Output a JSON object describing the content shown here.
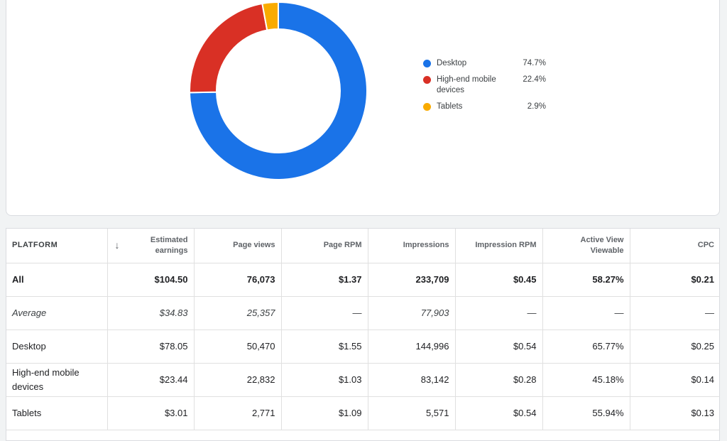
{
  "chart_data": {
    "type": "pie",
    "categories": [
      "Desktop",
      "High-end mobile devices",
      "Tablets"
    ],
    "values": [
      74.7,
      22.4,
      2.9
    ],
    "colors": [
      "#1a73e8",
      "#d93025",
      "#f9ab00"
    ],
    "legend_position": "right",
    "style": "donut"
  },
  "legend": [
    {
      "label": "Desktop",
      "value": "74.7%",
      "color": "#1a73e8"
    },
    {
      "label": "High-end mobile devices",
      "value": "22.4%",
      "color": "#d93025"
    },
    {
      "label": "Tablets",
      "value": "2.9%",
      "color": "#f9ab00"
    }
  ],
  "table": {
    "sort_icon": "arrow-down-icon",
    "columns": [
      "PLATFORM",
      "Estimated earnings",
      "Page views",
      "Page RPM",
      "Impressions",
      "Impression RPM",
      "Active View Viewable",
      "CPC"
    ],
    "rows": [
      {
        "type": "all",
        "cells": [
          "All",
          "$104.50",
          "76,073",
          "$1.37",
          "233,709",
          "$0.45",
          "58.27%",
          "$0.21"
        ]
      },
      {
        "type": "average",
        "cells": [
          "Average",
          "$34.83",
          "25,357",
          "—",
          "77,903",
          "—",
          "—",
          "—"
        ]
      },
      {
        "type": "data",
        "cells": [
          "Desktop",
          "$78.05",
          "50,470",
          "$1.55",
          "144,996",
          "$0.54",
          "65.77%",
          "$0.25"
        ]
      },
      {
        "type": "data",
        "cells": [
          "High-end mobile devices",
          "$23.44",
          "22,832",
          "$1.03",
          "83,142",
          "$0.28",
          "45.18%",
          "$0.14"
        ]
      },
      {
        "type": "data",
        "cells": [
          "Tablets",
          "$3.01",
          "2,771",
          "$1.09",
          "5,571",
          "$0.54",
          "55.94%",
          "$0.13"
        ]
      }
    ]
  }
}
